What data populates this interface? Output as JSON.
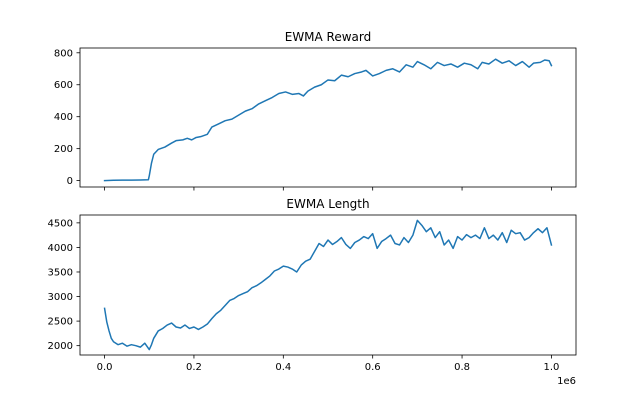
{
  "chart_data": [
    {
      "type": "line",
      "title": "EWMA Reward",
      "xlabel": "",
      "ylabel": "",
      "x_scale_label": "",
      "xlim": [
        -55000,
        1055000
      ],
      "ylim": [
        -40,
        830
      ],
      "xticks": [
        0,
        200000,
        400000,
        600000,
        800000,
        1000000
      ],
      "xtick_labels": [
        "",
        "",
        "",
        "",
        "",
        ""
      ],
      "yticks": [
        0,
        200,
        400,
        600,
        800
      ],
      "ytick_labels": [
        "0",
        "200",
        "400",
        "600",
        "800"
      ],
      "grid": false,
      "color": "#1f77b4",
      "series": [
        {
          "x": [
            0,
            20000,
            40000,
            60000,
            80000,
            98000,
            100000,
            105000,
            110000,
            120000,
            135000,
            150000,
            160000,
            175000,
            185000,
            195000,
            205000,
            215000,
            230000,
            240000,
            255000,
            270000,
            285000,
            300000,
            315000,
            330000,
            345000,
            360000,
            375000,
            390000,
            405000,
            420000,
            435000,
            445000,
            455000,
            470000,
            485000,
            500000,
            515000,
            530000,
            545000,
            560000,
            575000,
            585000,
            600000,
            615000,
            630000,
            645000,
            660000,
            675000,
            690000,
            700000,
            715000,
            730000,
            745000,
            760000,
            775000,
            790000,
            805000,
            820000,
            835000,
            845000,
            860000,
            875000,
            890000,
            905000,
            920000,
            935000,
            950000,
            960000,
            975000,
            985000,
            995000,
            1000000
          ],
          "y": [
            0,
            2,
            3,
            3,
            4,
            5,
            30,
            110,
            165,
            195,
            210,
            235,
            250,
            255,
            265,
            255,
            270,
            275,
            290,
            335,
            355,
            375,
            385,
            410,
            435,
            450,
            480,
            500,
            520,
            545,
            555,
            540,
            545,
            530,
            560,
            585,
            600,
            630,
            625,
            660,
            650,
            670,
            680,
            690,
            655,
            670,
            690,
            700,
            680,
            725,
            710,
            745,
            725,
            700,
            740,
            720,
            730,
            710,
            735,
            725,
            700,
            740,
            730,
            760,
            735,
            750,
            720,
            745,
            710,
            735,
            740,
            755,
            750,
            720
          ]
        }
      ]
    },
    {
      "type": "line",
      "title": "EWMA Length",
      "xlabel": "",
      "ylabel": "",
      "x_scale_label": "1e6",
      "xlim": [
        -55000,
        1055000
      ],
      "ylim": [
        1810,
        4660
      ],
      "xticks": [
        0,
        200000,
        400000,
        600000,
        800000,
        1000000
      ],
      "xtick_labels": [
        "0.0",
        "0.2",
        "0.4",
        "0.6",
        "0.8",
        "1.0"
      ],
      "yticks": [
        2000,
        2500,
        3000,
        3500,
        4000,
        4500
      ],
      "ytick_labels": [
        "2000",
        "2500",
        "3000",
        "3500",
        "4000",
        "4500"
      ],
      "grid": false,
      "color": "#1f77b4",
      "series": [
        {
          "x": [
            0,
            5000,
            10000,
            15000,
            20000,
            30000,
            40000,
            50000,
            60000,
            70000,
            80000,
            90000,
            100000,
            105000,
            110000,
            120000,
            130000,
            140000,
            150000,
            160000,
            170000,
            180000,
            190000,
            200000,
            210000,
            220000,
            230000,
            240000,
            250000,
            260000,
            270000,
            280000,
            290000,
            300000,
            310000,
            320000,
            330000,
            340000,
            350000,
            360000,
            370000,
            380000,
            390000,
            400000,
            410000,
            420000,
            430000,
            440000,
            450000,
            460000,
            470000,
            480000,
            490000,
            500000,
            510000,
            520000,
            530000,
            540000,
            550000,
            560000,
            570000,
            580000,
            590000,
            600000,
            610000,
            620000,
            630000,
            640000,
            650000,
            660000,
            670000,
            680000,
            690000,
            700000,
            710000,
            720000,
            730000,
            740000,
            750000,
            760000,
            770000,
            780000,
            790000,
            800000,
            810000,
            820000,
            830000,
            840000,
            850000,
            860000,
            870000,
            880000,
            890000,
            900000,
            910000,
            920000,
            930000,
            940000,
            950000,
            960000,
            970000,
            980000,
            990000,
            1000000
          ],
          "y": [
            2760,
            2480,
            2300,
            2150,
            2080,
            2020,
            2050,
            1990,
            2020,
            2000,
            1970,
            2050,
            1920,
            2020,
            2150,
            2300,
            2350,
            2420,
            2460,
            2380,
            2360,
            2420,
            2350,
            2380,
            2330,
            2380,
            2440,
            2550,
            2650,
            2720,
            2820,
            2920,
            2960,
            3020,
            3060,
            3100,
            3180,
            3220,
            3280,
            3350,
            3420,
            3520,
            3560,
            3620,
            3600,
            3560,
            3500,
            3640,
            3720,
            3760,
            3920,
            4080,
            4020,
            4150,
            4060,
            4120,
            4200,
            4060,
            3980,
            4100,
            4150,
            4220,
            4180,
            4280,
            3980,
            4120,
            4180,
            4250,
            4080,
            4050,
            4200,
            4100,
            4250,
            4550,
            4450,
            4320,
            4400,
            4200,
            4320,
            4050,
            4150,
            3980,
            4220,
            4150,
            4260,
            4200,
            4250,
            4180,
            4400,
            4180,
            4250,
            4150,
            4300,
            4100,
            4350,
            4280,
            4300,
            4150,
            4200,
            4300,
            4380,
            4300,
            4400,
            4050
          ]
        }
      ]
    }
  ]
}
